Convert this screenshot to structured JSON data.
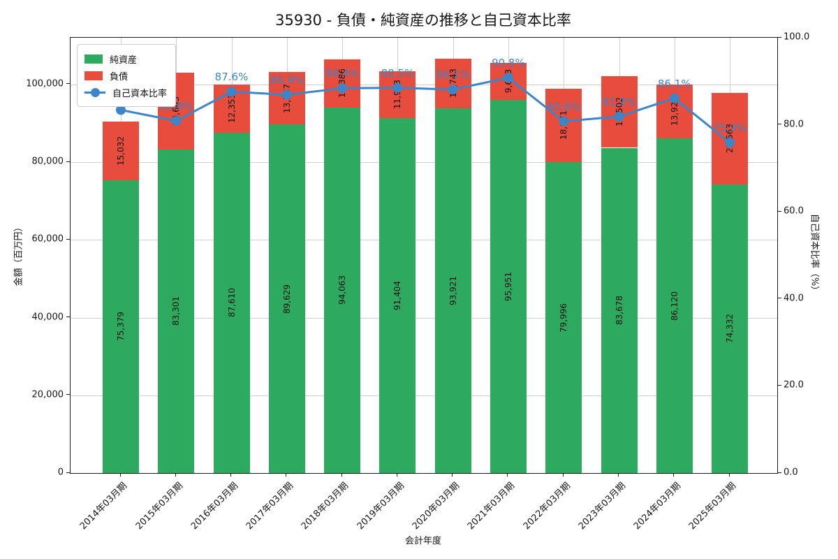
{
  "title": "35930 - 負債・純資産の推移と自己資本比率",
  "chart_data": {
    "type": "bar",
    "stacked": true,
    "secondary_line": true,
    "categories": [
      "2014年03月期",
      "2015年03月期",
      "2016年03月期",
      "2017年03月期",
      "2018年03月期",
      "2019年03月期",
      "2020年03月期",
      "2021年03月期",
      "2022年03月期",
      "2023年03月期",
      "2024年03月期",
      "2025年03月期"
    ],
    "series": [
      {
        "name": "純資産",
        "type": "bar",
        "color": "#2DAA5F",
        "values": [
          75379,
          83301,
          87610,
          89629,
          94063,
          91404,
          93921,
          95951,
          79996,
          83678,
          86120,
          74332
        ]
      },
      {
        "name": "負債",
        "type": "bar",
        "color": "#E74C3C",
        "values": [
          15032,
          19643,
          12353,
          13547,
          12386,
          11913,
          12743,
          9673,
          18971,
          18502,
          13927,
          23563
        ]
      },
      {
        "name": "自己資本比率",
        "type": "line",
        "color": "#3D85C6",
        "axis": "right",
        "unit": "%",
        "values": [
          83.4,
          80.9,
          87.6,
          86.9,
          88.4,
          88.5,
          88.1,
          90.8,
          80.8,
          81.9,
          86.1,
          75.9
        ]
      }
    ],
    "xlabel": "会計年度",
    "ylabel_left": "金額（百万円）",
    "ylabel_right": "自己資本比率（%）",
    "ylim_left": [
      0,
      112000
    ],
    "ylim_right": [
      0,
      100
    ],
    "ytick_values_left": [
      0,
      20000,
      40000,
      60000,
      80000,
      100000
    ],
    "ytick_labels_left": [
      "0",
      "20,000",
      "40,000",
      "60,000",
      "80,000",
      "100,000"
    ],
    "ytick_values_right": [
      0,
      20,
      40,
      60,
      80,
      100
    ],
    "ytick_labels_right": [
      "0.0",
      "20.0",
      "40.0",
      "60.0",
      "80.0",
      "100.0"
    ],
    "grid": true,
    "legend_position": "upper left",
    "colors": {
      "net_assets": "#2DAA5F",
      "liabilities": "#E74C3C",
      "ratio_line": "#3D85C6",
      "grid": "#cfcfcf"
    }
  }
}
